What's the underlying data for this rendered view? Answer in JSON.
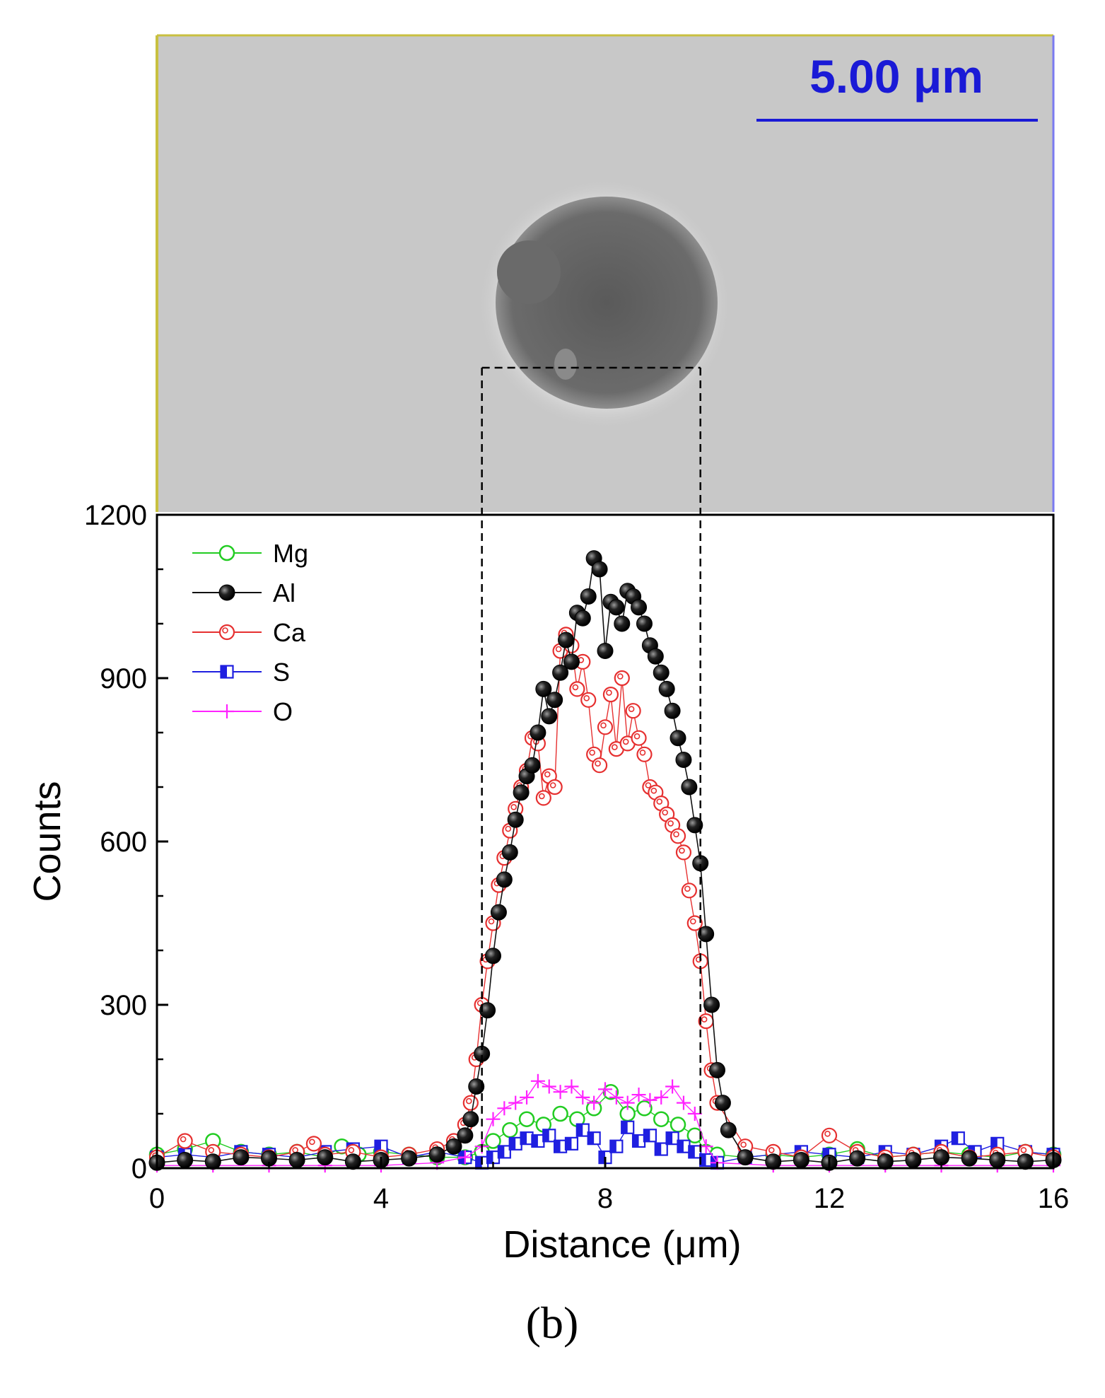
{
  "micrograph": {
    "scale_bar_text": "5.00 μm",
    "scale_bar_color": "#1a1ad6"
  },
  "panel_label": "(b)",
  "chart_data": {
    "type": "scatter",
    "title": "",
    "xlabel": "Distance (μm)",
    "ylabel": "Counts",
    "xlim": [
      0,
      16
    ],
    "ylim": [
      0,
      1200
    ],
    "x_ticks": [
      0,
      4,
      8,
      12,
      16
    ],
    "y_ticks": [
      0,
      300,
      600,
      900,
      1200
    ],
    "grid": false,
    "legend_position": "top-left",
    "region_lines_x": [
      5.8,
      9.7
    ],
    "series": [
      {
        "name": "Mg",
        "color": "#22cc22",
        "marker": "open-circle",
        "x": [
          0,
          0.5,
          1.0,
          1.5,
          2.0,
          2.5,
          3.0,
          3.3,
          3.6,
          4.0,
          4.5,
          5.0,
          5.5,
          5.8,
          6.0,
          6.3,
          6.6,
          6.9,
          7.2,
          7.5,
          7.8,
          8.1,
          8.4,
          8.7,
          9.0,
          9.3,
          9.6,
          9.8,
          10.0,
          10.5,
          11.0,
          11.5,
          12.0,
          12.5,
          13.0,
          13.5,
          14.0,
          14.5,
          15.0,
          15.5,
          16.0
        ],
        "y": [
          25,
          35,
          50,
          30,
          25,
          30,
          20,
          40,
          25,
          30,
          25,
          20,
          20,
          30,
          50,
          70,
          90,
          80,
          100,
          90,
          110,
          140,
          100,
          110,
          90,
          80,
          60,
          30,
          25,
          20,
          25,
          20,
          25,
          35,
          20,
          25,
          30,
          25,
          20,
          30,
          25
        ]
      },
      {
        "name": "Al",
        "color": "#111111",
        "marker": "filled-sphere",
        "x": [
          0,
          0.5,
          1.0,
          1.5,
          2.0,
          2.5,
          3.0,
          3.5,
          4.0,
          4.5,
          5.0,
          5.3,
          5.5,
          5.6,
          5.7,
          5.8,
          5.9,
          6.0,
          6.1,
          6.2,
          6.3,
          6.4,
          6.5,
          6.6,
          6.7,
          6.8,
          6.9,
          7.0,
          7.1,
          7.2,
          7.3,
          7.4,
          7.5,
          7.6,
          7.7,
          7.8,
          7.9,
          8.0,
          8.1,
          8.2,
          8.3,
          8.4,
          8.5,
          8.6,
          8.7,
          8.8,
          8.9,
          9.0,
          9.1,
          9.2,
          9.3,
          9.4,
          9.5,
          9.6,
          9.7,
          9.8,
          9.9,
          10.0,
          10.1,
          10.2,
          10.5,
          11.0,
          11.5,
          12.0,
          12.5,
          13.0,
          13.5,
          14.0,
          14.5,
          15.0,
          15.5,
          16.0
        ],
        "y": [
          10,
          15,
          12,
          20,
          18,
          15,
          20,
          12,
          15,
          18,
          25,
          40,
          60,
          90,
          150,
          210,
          290,
          390,
          470,
          530,
          580,
          640,
          690,
          720,
          740,
          800,
          880,
          830,
          860,
          910,
          970,
          930,
          1020,
          1010,
          1050,
          1120,
          1100,
          950,
          1040,
          1030,
          1000,
          1060,
          1050,
          1030,
          1000,
          960,
          940,
          910,
          880,
          840,
          790,
          750,
          700,
          630,
          560,
          430,
          300,
          180,
          120,
          70,
          20,
          12,
          15,
          10,
          18,
          12,
          15,
          20,
          18,
          15,
          12,
          15
        ]
      },
      {
        "name": "Ca",
        "color": "#e63030",
        "marker": "open-circle-dot",
        "x": [
          0,
          0.5,
          1.0,
          1.5,
          2.0,
          2.5,
          2.8,
          3.0,
          3.5,
          4.0,
          4.5,
          5.0,
          5.3,
          5.5,
          5.6,
          5.7,
          5.8,
          5.9,
          6.0,
          6.1,
          6.2,
          6.3,
          6.4,
          6.5,
          6.6,
          6.7,
          6.8,
          6.9,
          7.0,
          7.1,
          7.2,
          7.3,
          7.4,
          7.5,
          7.6,
          7.7,
          7.8,
          7.9,
          8.0,
          8.1,
          8.2,
          8.3,
          8.4,
          8.5,
          8.6,
          8.7,
          8.8,
          8.9,
          9.0,
          9.1,
          9.2,
          9.3,
          9.4,
          9.5,
          9.6,
          9.7,
          9.8,
          9.9,
          10.0,
          10.5,
          11.0,
          11.5,
          12.0,
          12.5,
          13.0,
          13.5,
          14.0,
          14.5,
          15.0,
          15.5,
          16.0
        ],
        "y": [
          20,
          50,
          30,
          25,
          20,
          30,
          45,
          25,
          30,
          20,
          25,
          35,
          50,
          80,
          120,
          200,
          300,
          380,
          450,
          520,
          570,
          620,
          660,
          700,
          730,
          790,
          780,
          680,
          720,
          700,
          950,
          980,
          960,
          880,
          930,
          860,
          760,
          740,
          810,
          870,
          770,
          900,
          780,
          840,
          790,
          760,
          700,
          690,
          670,
          650,
          630,
          610,
          580,
          510,
          450,
          380,
          270,
          180,
          120,
          40,
          30,
          20,
          60,
          30,
          20,
          25,
          30,
          20,
          25,
          30,
          20
        ]
      },
      {
        "name": "S",
        "color": "#1f1fe0",
        "marker": "half-square",
        "x": [
          0,
          0.5,
          1.0,
          1.5,
          2.0,
          2.5,
          3.0,
          3.5,
          4.0,
          4.5,
          5.0,
          5.5,
          5.8,
          6.0,
          6.2,
          6.4,
          6.6,
          6.8,
          7.0,
          7.2,
          7.4,
          7.6,
          7.8,
          8.0,
          8.2,
          8.4,
          8.6,
          8.8,
          9.0,
          9.2,
          9.4,
          9.6,
          9.8,
          10.0,
          10.5,
          11.0,
          11.5,
          12.0,
          12.5,
          13.0,
          13.5,
          14.0,
          14.3,
          14.6,
          15.0,
          15.5,
          16.0
        ],
        "y": [
          20,
          25,
          20,
          30,
          25,
          20,
          30,
          35,
          40,
          20,
          30,
          20,
          10,
          20,
          30,
          45,
          55,
          50,
          60,
          40,
          45,
          70,
          55,
          20,
          40,
          75,
          50,
          60,
          35,
          55,
          40,
          30,
          15,
          10,
          20,
          25,
          30,
          25,
          20,
          30,
          25,
          40,
          55,
          30,
          45,
          30,
          25
        ]
      },
      {
        "name": "O",
        "color": "#ff22ff",
        "marker": "plus",
        "x": [
          0,
          1.0,
          2.0,
          3.0,
          4.0,
          5.0,
          5.5,
          5.8,
          6.0,
          6.2,
          6.4,
          6.6,
          6.8,
          7.0,
          7.2,
          7.4,
          7.6,
          7.8,
          8.0,
          8.2,
          8.4,
          8.6,
          8.8,
          9.0,
          9.2,
          9.4,
          9.6,
          9.8,
          10.0,
          11.0,
          12.0,
          13.0,
          14.0,
          15.0,
          16.0
        ],
        "y": [
          5,
          5,
          5,
          5,
          5,
          10,
          20,
          40,
          90,
          110,
          120,
          130,
          160,
          150,
          140,
          150,
          130,
          120,
          145,
          130,
          120,
          135,
          125,
          130,
          150,
          120,
          100,
          40,
          10,
          5,
          5,
          5,
          5,
          5,
          5
        ]
      }
    ]
  }
}
